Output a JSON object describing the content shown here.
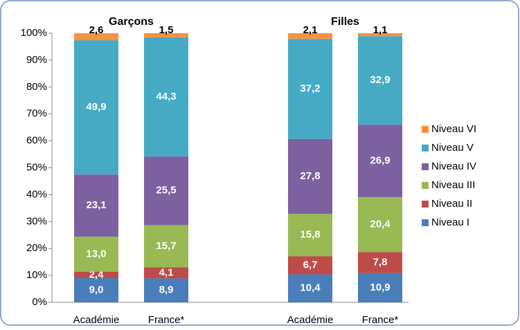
{
  "chart_data": {
    "type": "stacked-bar",
    "groups": [
      "Garçons",
      "Filles"
    ],
    "categories": [
      "Académie",
      "France*",
      "Académie",
      "France*"
    ],
    "ylim": [
      0,
      100
    ],
    "yticks": [
      {
        "value": 0,
        "label": "0%"
      },
      {
        "value": 10,
        "label": "10%"
      },
      {
        "value": 20,
        "label": "20%"
      },
      {
        "value": 30,
        "label": "30%"
      },
      {
        "value": 40,
        "label": "40%"
      },
      {
        "value": 50,
        "label": "50%"
      },
      {
        "value": 60,
        "label": "60%"
      },
      {
        "value": 70,
        "label": "70%"
      },
      {
        "value": 80,
        "label": "80%"
      },
      {
        "value": 90,
        "label": "90%"
      },
      {
        "value": 100,
        "label": "100%"
      }
    ],
    "legend": "right",
    "series": [
      {
        "name": "Niveau I",
        "color": "#4a7ebb",
        "values": [
          9.0,
          8.9,
          10.4,
          10.9
        ],
        "value_labels": [
          "9,0",
          "8,9",
          "10,4",
          "10,9"
        ]
      },
      {
        "name": "Niveau II",
        "color": "#be4b48",
        "values": [
          2.4,
          4.1,
          6.7,
          7.8
        ],
        "value_labels": [
          "2,4",
          "4,1",
          "6,7",
          "7,8"
        ]
      },
      {
        "name": "Niveau III",
        "color": "#98b954",
        "values": [
          13.0,
          15.7,
          15.8,
          20.4
        ],
        "value_labels": [
          "13,0",
          "15,7",
          "15,8",
          "20,4"
        ]
      },
      {
        "name": "Niveau IV",
        "color": "#7d60a0",
        "values": [
          23.1,
          25.5,
          27.8,
          26.9
        ],
        "value_labels": [
          "23,1",
          "25,5",
          "27,8",
          "26,9"
        ]
      },
      {
        "name": "Niveau V",
        "color": "#46aac5",
        "values": [
          49.9,
          44.3,
          37.2,
          32.9
        ],
        "value_labels": [
          "49,9",
          "44,3",
          "37,2",
          "32,9"
        ]
      },
      {
        "name": "Niveau VI",
        "color": "#f69240",
        "values": [
          2.6,
          1.5,
          2.1,
          1.1
        ],
        "value_labels": [
          "2,6",
          "1,5",
          "2,1",
          "1,1"
        ]
      }
    ]
  }
}
